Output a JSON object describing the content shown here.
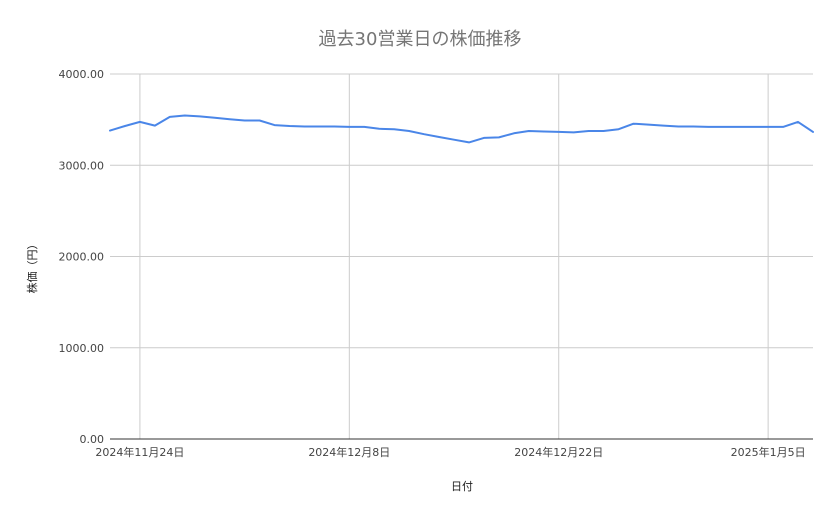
{
  "chart_data": {
    "type": "line",
    "title": "過去30営業日の株価推移",
    "xlabel": "日付",
    "ylabel": "株価（円）",
    "ylim": [
      0,
      4000
    ],
    "yticks": [
      "0.00",
      "1000.00",
      "2000.00",
      "3000.00",
      "4000.00"
    ],
    "xticks": [
      {
        "date": "2024-11-24",
        "label": "2024年11月24日"
      },
      {
        "date": "2024-12-08",
        "label": "2024年12月8日"
      },
      {
        "date": "2024-12-22",
        "label": "2024年12月22日"
      },
      {
        "date": "2025-01-05",
        "label": "2025年1月5日"
      }
    ],
    "xlim": [
      "2024-11-22",
      "2025-01-08"
    ],
    "grid": true,
    "line_color": "#4a86e8",
    "series": [
      {
        "x": [
          "2024-11-22",
          "2024-11-23",
          "2024-11-24",
          "2024-11-25",
          "2024-11-26",
          "2024-11-27",
          "2024-11-28",
          "2024-11-29",
          "2024-11-30",
          "2024-12-01",
          "2024-12-02",
          "2024-12-03",
          "2024-12-04",
          "2024-12-05",
          "2024-12-06",
          "2024-12-07",
          "2024-12-08",
          "2024-12-09",
          "2024-12-10",
          "2024-12-11",
          "2024-12-12",
          "2024-12-13",
          "2024-12-14",
          "2024-12-15",
          "2024-12-16",
          "2024-12-17",
          "2024-12-18",
          "2024-12-19",
          "2024-12-20",
          "2024-12-21",
          "2024-12-22",
          "2024-12-23",
          "2024-12-24",
          "2024-12-25",
          "2024-12-26",
          "2024-12-27",
          "2024-12-28",
          "2024-12-29",
          "2024-12-30",
          "2024-12-31",
          "2025-01-01",
          "2025-01-02",
          "2025-01-03",
          "2025-01-04",
          "2025-01-05",
          "2025-01-06",
          "2025-01-07",
          "2025-01-08"
        ],
        "values": [
          3380,
          3430,
          3475,
          3435,
          3530,
          3545,
          3535,
          3520,
          3505,
          3490,
          3490,
          3440,
          3430,
          3425,
          3425,
          3425,
          3420,
          3420,
          3400,
          3395,
          3375,
          3340,
          3310,
          3280,
          3250,
          3300,
          3305,
          3350,
          3375,
          3370,
          3365,
          3360,
          3375,
          3375,
          3395,
          3455,
          3445,
          3435,
          3425,
          3425,
          3420,
          3420,
          3420,
          3420,
          3420,
          3420,
          3475,
          3365
        ]
      }
    ]
  }
}
